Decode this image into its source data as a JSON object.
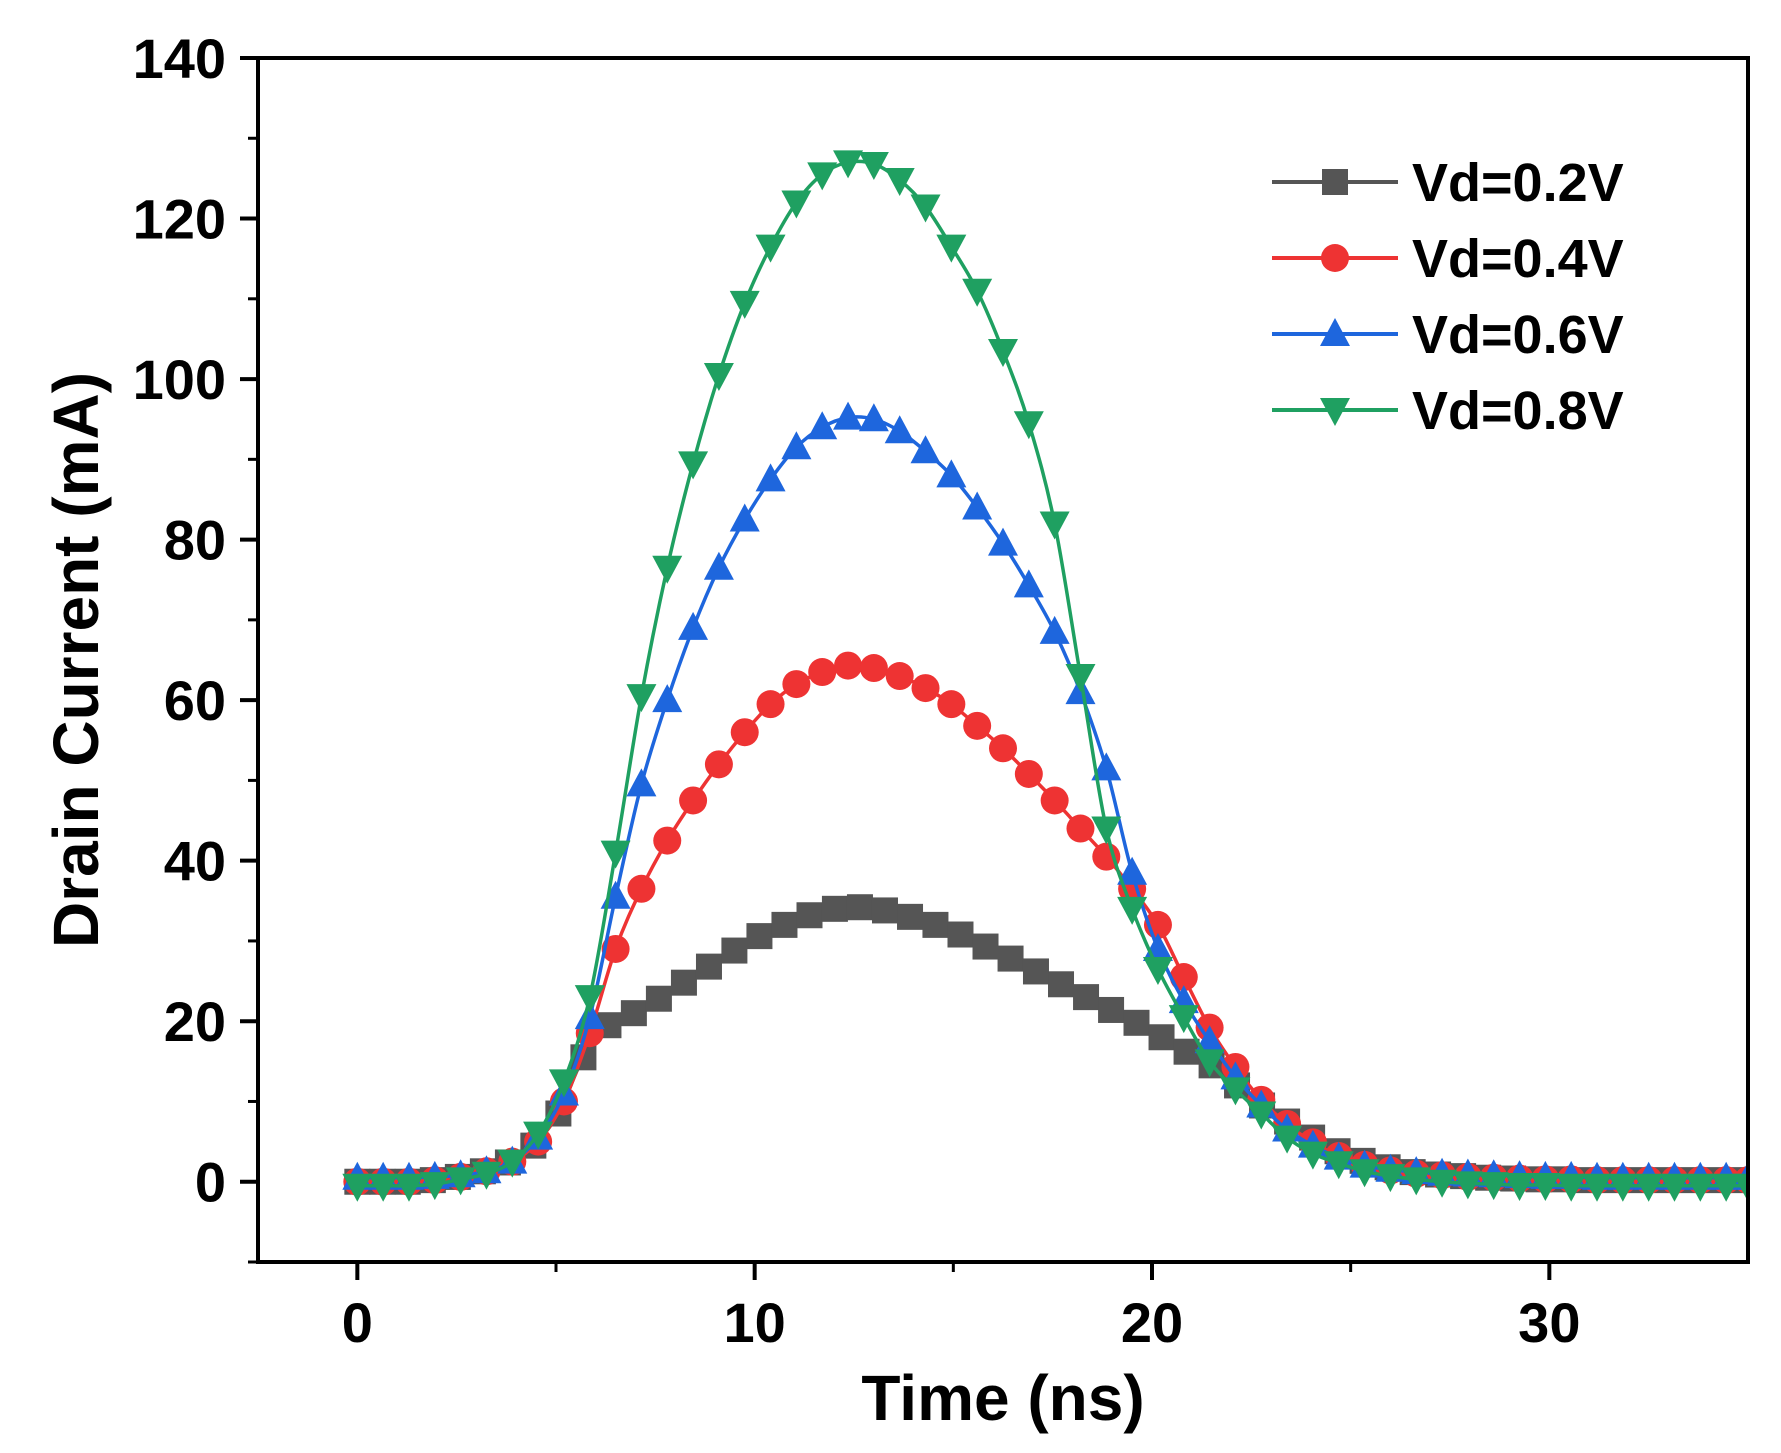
{
  "chart_data": {
    "type": "line",
    "title": "",
    "xlabel": "Time (ns)",
    "ylabel": "Drain Current (mA)",
    "xlim": [
      -2.5,
      35
    ],
    "ylim": [
      -10,
      140
    ],
    "xticks": [
      0,
      10,
      20,
      30
    ],
    "xtick_labels": [
      "0",
      "10",
      "20",
      "30"
    ],
    "yticks": [
      0,
      20,
      40,
      60,
      80,
      100,
      120,
      140
    ],
    "ytick_labels": [
      "0",
      "20",
      "40",
      "60",
      "80",
      "100",
      "120",
      "140"
    ],
    "legend_position": "top-right",
    "grid": false,
    "series": [
      {
        "name": "Vd=0.2V",
        "color": "#555555",
        "marker": "square",
        "x": [
          0,
          0.63,
          1.27,
          1.9,
          2.53,
          3.16,
          3.79,
          4.43,
          5.06,
          5.69,
          6.32,
          6.96,
          7.59,
          8.22,
          8.85,
          9.49,
          10.12,
          10.75,
          11.38,
          12.02,
          12.65,
          13.28,
          13.91,
          14.55,
          15.18,
          15.81,
          16.44,
          17.08,
          17.71,
          18.34,
          18.97,
          19.61,
          20.24,
          20.87,
          21.5,
          22.14,
          22.77,
          23.4,
          24.03,
          24.67,
          25.3,
          25.93,
          26.56,
          27.2,
          27.83,
          28.46,
          29.09,
          29.73,
          30.36,
          30.99,
          31.62,
          32.26,
          32.89,
          33.52,
          34.15,
          34.79
        ],
        "values": [
          0,
          0,
          0,
          0.2,
          0.6,
          1.3,
          2.4,
          4.5,
          8.5,
          15.5,
          19.5,
          21,
          22.8,
          24.8,
          26.8,
          28.8,
          30.6,
          32,
          33.2,
          34,
          34.2,
          33.8,
          33,
          32,
          30.8,
          29.3,
          27.8,
          26.2,
          24.6,
          23,
          21.4,
          19.8,
          18,
          16.2,
          14.5,
          12,
          9.5,
          7.5,
          5.5,
          3.8,
          2.6,
          1.8,
          1.2,
          0.9,
          0.7,
          0.5,
          0.4,
          0.3,
          0.3,
          0.2,
          0.2,
          0.2,
          0.2,
          0.2,
          0.2,
          0.2
        ]
      },
      {
        "name": "Vd=0.4V",
        "color": "#ee3333",
        "marker": "circle",
        "x": [
          0,
          0.65,
          1.3,
          1.95,
          2.6,
          3.25,
          3.9,
          4.55,
          5.2,
          5.85,
          6.5,
          7.15,
          7.8,
          8.45,
          9.1,
          9.75,
          10.4,
          11.05,
          11.7,
          12.35,
          13,
          13.65,
          14.3,
          14.95,
          15.6,
          16.25,
          16.9,
          17.55,
          18.2,
          18.85,
          19.5,
          20.15,
          20.8,
          21.45,
          22.1,
          22.75,
          23.4,
          24.05,
          24.7,
          25.35,
          26,
          26.65,
          27.3,
          27.95,
          28.6,
          29.25,
          29.9,
          30.55,
          31.2,
          31.85,
          32.5,
          33.15,
          33.8,
          34.45,
          35.0
        ],
        "values": [
          0,
          0,
          0,
          0.2,
          0.6,
          1.3,
          2.5,
          5,
          10,
          18.5,
          29,
          36.5,
          42.5,
          47.5,
          52,
          56,
          59.5,
          62,
          63.5,
          64.3,
          64,
          63,
          61.5,
          59.5,
          56.8,
          54,
          50.8,
          47.5,
          44,
          40.5,
          36.5,
          32,
          25.5,
          19.2,
          14.3,
          10.2,
          7.2,
          4.9,
          3.2,
          2.1,
          1.4,
          1,
          0.8,
          0.6,
          0.5,
          0.4,
          0.3,
          0.3,
          0.2,
          0.2,
          0.2,
          0.2,
          0.2,
          0.2,
          0.2
        ]
      },
      {
        "name": "Vd=0.6V",
        "color": "#1e66dd",
        "marker": "triangle-up",
        "x": [
          0,
          0.65,
          1.3,
          1.95,
          2.6,
          3.25,
          3.9,
          4.55,
          5.2,
          5.85,
          6.5,
          7.15,
          7.8,
          8.45,
          9.1,
          9.75,
          10.4,
          11.05,
          11.7,
          12.35,
          13,
          13.65,
          14.3,
          14.95,
          15.6,
          16.25,
          16.9,
          17.55,
          18.2,
          18.85,
          19.5,
          20.15,
          20.8,
          21.45,
          22.1,
          22.75,
          23.4,
          24.05,
          24.7,
          25.35,
          26,
          26.65,
          27.3,
          27.95,
          28.6,
          29.25,
          29.9,
          30.55,
          31.2,
          31.85,
          32.5,
          33.15,
          33.8,
          34.45,
          35.0
        ],
        "values": [
          0.5,
          0.5,
          0.5,
          0.6,
          0.8,
          1.3,
          2.5,
          5.5,
          11,
          20.5,
          35.5,
          49.5,
          60,
          69,
          76.5,
          82.5,
          87.5,
          91.5,
          94,
          95.2,
          95,
          93.5,
          91,
          88,
          84,
          79.5,
          74.3,
          68.5,
          61,
          51.5,
          38.5,
          29,
          22.5,
          17.5,
          13,
          9.5,
          6.5,
          4.5,
          3,
          2,
          1.5,
          1.2,
          1,
          0.9,
          0.8,
          0.7,
          0.6,
          0.6,
          0.5,
          0.5,
          0.5,
          0.5,
          0.5,
          0.5,
          0.5
        ]
      },
      {
        "name": "Vd=0.8V",
        "color": "#1fa061",
        "marker": "triangle-down",
        "x": [
          0,
          0.65,
          1.3,
          1.95,
          2.6,
          3.25,
          3.9,
          4.55,
          5.2,
          5.85,
          6.5,
          7.15,
          7.8,
          8.45,
          9.1,
          9.75,
          10.4,
          11.05,
          11.7,
          12.35,
          13,
          13.65,
          14.3,
          14.95,
          15.6,
          16.25,
          16.9,
          17.55,
          18.2,
          18.85,
          19.5,
          20.15,
          20.8,
          21.45,
          22.1,
          22.75,
          23.4,
          24.05,
          24.7,
          25.35,
          26,
          26.65,
          27.3,
          27.95,
          28.6,
          29.25,
          29.9,
          30.55,
          31.2,
          31.85,
          32.5,
          33.15,
          33.8,
          34.45,
          35.0
        ],
        "values": [
          -0.5,
          -0.5,
          -0.5,
          -0.3,
          0.3,
          1,
          2.5,
          6,
          12.5,
          23,
          41,
          60.5,
          76.5,
          89.5,
          100.5,
          109.5,
          116.5,
          122,
          125.5,
          127,
          126.8,
          124.8,
          121.5,
          116.5,
          111,
          103.5,
          94.5,
          82,
          63,
          44,
          34,
          26.5,
          20.5,
          15,
          11.5,
          8.5,
          5.5,
          3.5,
          2.3,
          1.3,
          0.7,
          0.3,
          0,
          -0.2,
          -0.3,
          -0.4,
          -0.4,
          -0.5,
          -0.5,
          -0.5,
          -0.5,
          -0.5,
          -0.5,
          -0.5,
          -0.5
        ]
      }
    ]
  }
}
